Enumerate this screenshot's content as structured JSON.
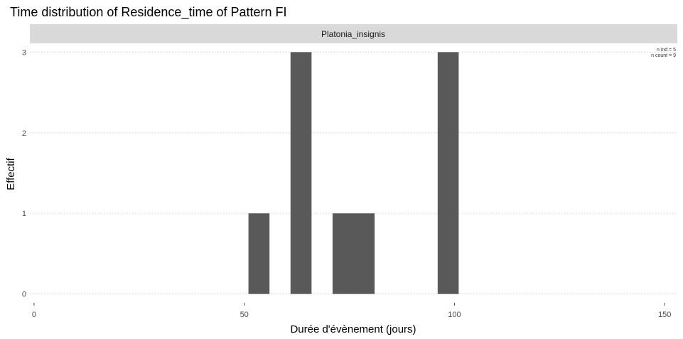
{
  "chart_data": {
    "type": "bar",
    "title": "Time distribution of Residence_time of Pattern FI",
    "facet_label": "Platonia_insignis",
    "xlabel": "Durée d'évènement (jours)",
    "ylabel": "Effectif",
    "xlim": [
      -1,
      153
    ],
    "ylim": [
      -0.1,
      3.1
    ],
    "x_ticks": [
      0,
      50,
      100,
      150
    ],
    "y_ticks": [
      0,
      1,
      2,
      3
    ],
    "grid": "horizontal dotted",
    "bin_width": 5,
    "bars": [
      {
        "x_start": 51,
        "x_end": 56,
        "value": 1
      },
      {
        "x_start": 61,
        "x_end": 66,
        "value": 3
      },
      {
        "x_start": 71,
        "x_end": 76,
        "value": 1
      },
      {
        "x_start": 76,
        "x_end": 81,
        "value": 1
      },
      {
        "x_start": 96,
        "x_end": 101,
        "value": 3
      }
    ],
    "annotations": [
      "n ind =  5",
      "n count =  9"
    ],
    "colors": {
      "bar": "#595959",
      "strip": "#d9d9d9",
      "grid": "#d0d0d0"
    }
  }
}
